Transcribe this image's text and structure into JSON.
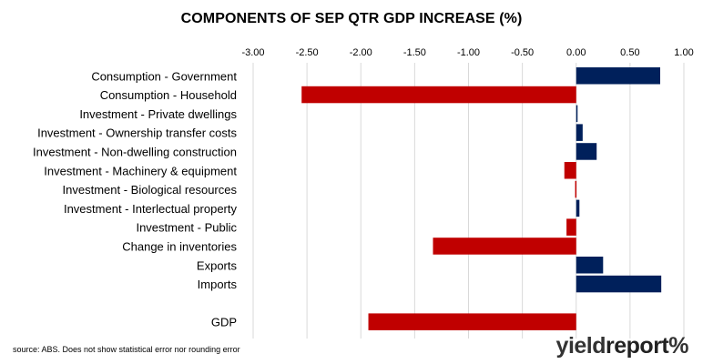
{
  "chart_data": {
    "type": "bar",
    "orientation": "horizontal",
    "title": "COMPONENTS OF SEP QTR GDP INCREASE (%)",
    "xlim": [
      -3.0,
      1.0
    ],
    "x_ticks": [
      -3.0,
      -2.5,
      -2.0,
      -1.5,
      -1.0,
      -0.5,
      0.0,
      0.5,
      1.0
    ],
    "x_tick_labels": [
      "-3.00",
      "-2.50",
      "-2.00",
      "-1.50",
      "-1.00",
      "-0.50",
      "0.00",
      "0.50",
      "1.00"
    ],
    "axis_position": "top",
    "grid": true,
    "categories": [
      "Consumption - Government",
      "Consumption - Household",
      "Investment - Private dwellings",
      "Investment - Ownership transfer costs",
      "Investment - Non-dwelling construction",
      "Investment - Machinery & equipment",
      "Investment - Biological resources",
      "Investment - Interlectual property",
      "Investment - Public",
      "Change in inventories",
      "Exports",
      "Imports",
      "",
      "GDP"
    ],
    "values": [
      0.78,
      -2.55,
      0.01,
      0.06,
      0.19,
      -0.11,
      -0.01,
      0.03,
      -0.09,
      -1.33,
      0.25,
      0.79,
      null,
      -1.93
    ],
    "colors": {
      "positive": "#00205b",
      "negative": "#c00000",
      "grid": "#d9d9d9"
    }
  },
  "source_note": "source: ABS. Does not show statistical error nor rounding error",
  "logo": {
    "part1": "yield",
    "part2": "report",
    "part3": "%"
  }
}
